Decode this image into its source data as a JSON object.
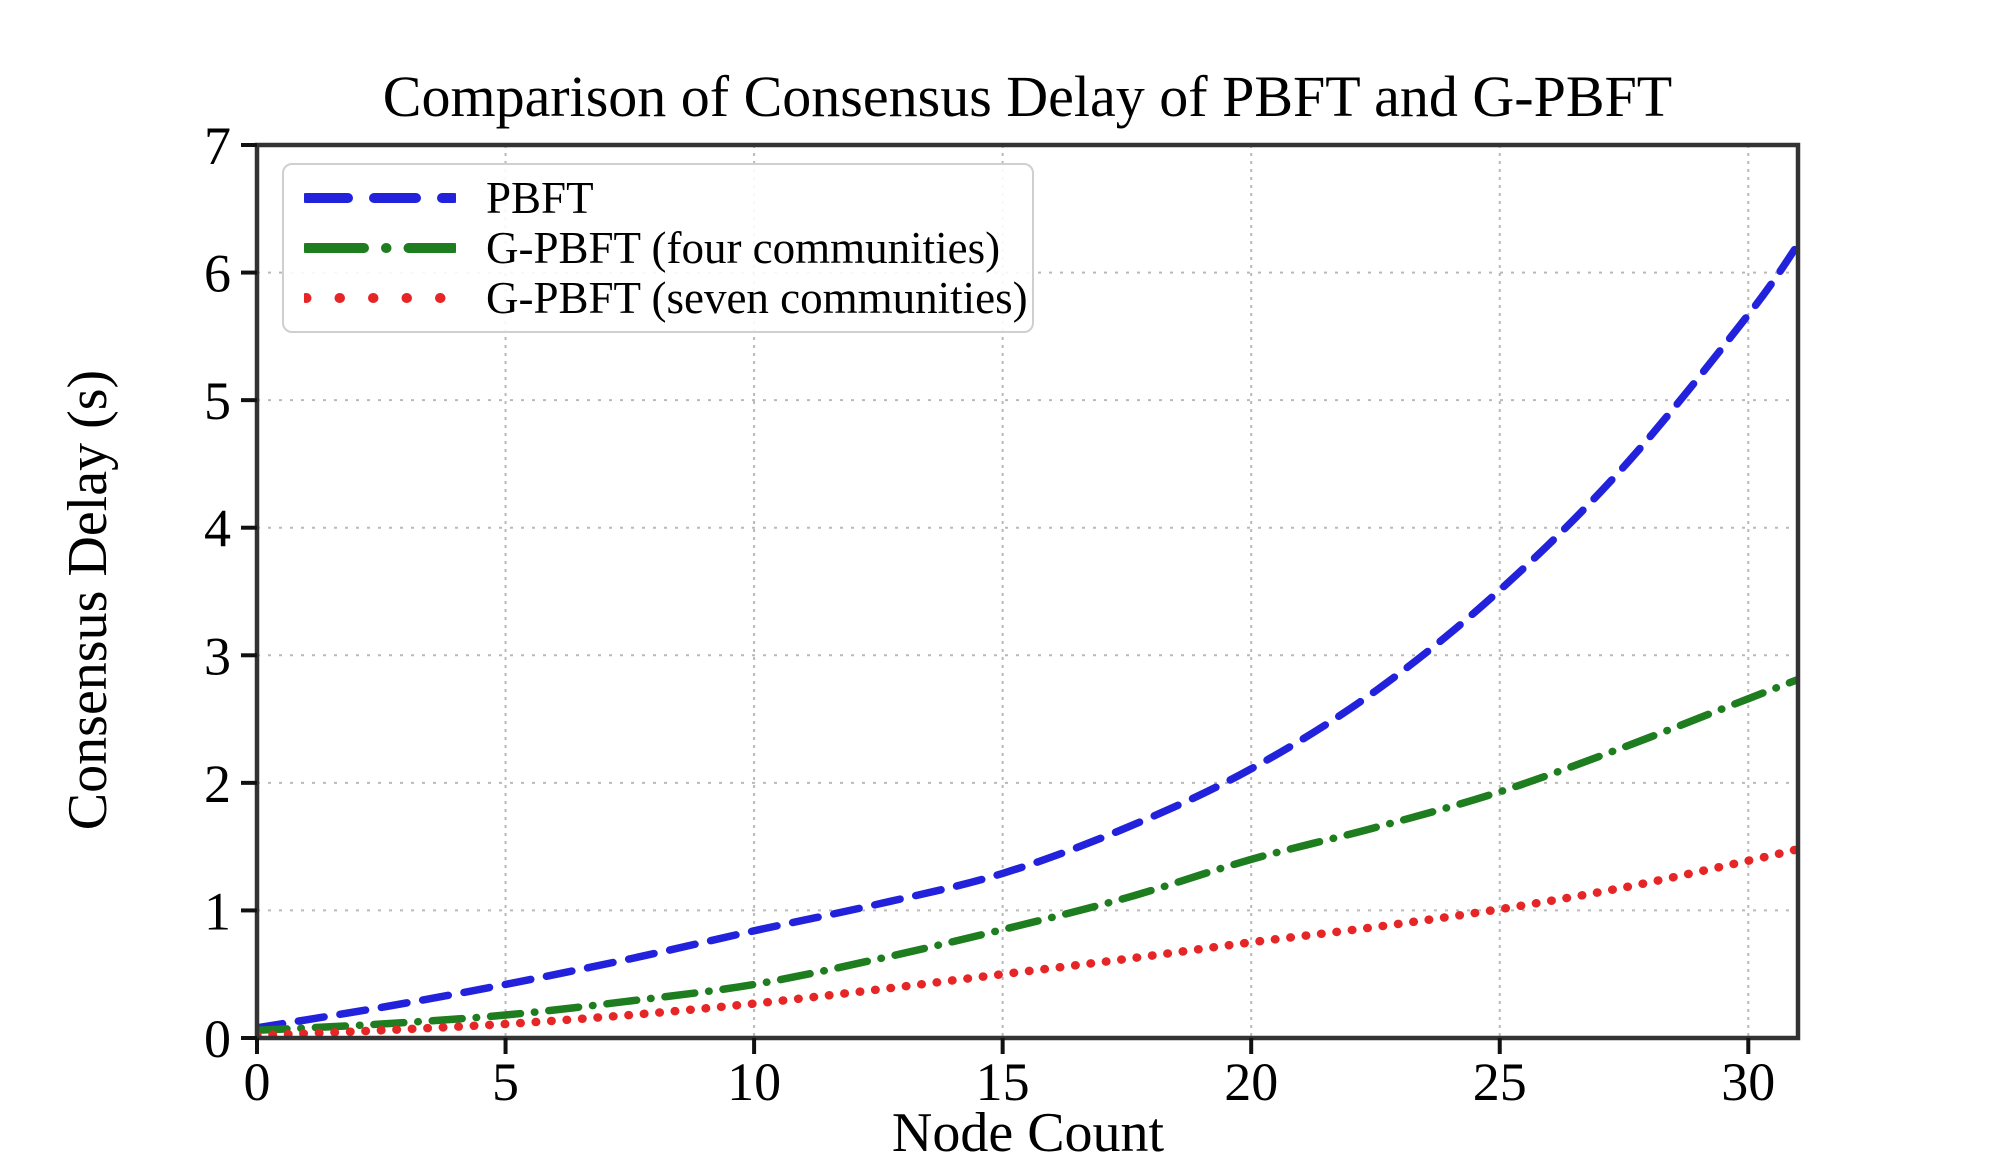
{
  "chart_data": {
    "type": "line",
    "title": "Comparison of Consensus Delay of PBFT and G-PBFT",
    "xlabel": "Node Count",
    "ylabel": "Consensus Delay (s)",
    "xlim": [
      0,
      31
    ],
    "ylim": [
      0,
      7
    ],
    "xticks": [
      0,
      5,
      10,
      15,
      20,
      25,
      30
    ],
    "yticks": [
      0,
      1,
      2,
      3,
      4,
      5,
      6,
      7
    ],
    "grid": true,
    "legend_position": "upper left",
    "x": [
      0,
      2.5,
      5,
      7.5,
      10,
      12.5,
      15,
      17.5,
      20,
      22.5,
      25,
      27.5,
      30,
      31
    ],
    "series": [
      {
        "name": "PBFT",
        "color": "#2222dd",
        "line_style": "dashed",
        "values": [
          0.08,
          0.24,
          0.42,
          0.62,
          0.84,
          1.05,
          1.29,
          1.65,
          2.11,
          2.72,
          3.51,
          4.48,
          5.67,
          6.22
        ]
      },
      {
        "name": "G-PBFT (four communities)",
        "color": "#1e7d1e",
        "line_style": "dashdot",
        "values": [
          0.06,
          0.11,
          0.18,
          0.29,
          0.42,
          0.62,
          0.85,
          1.1,
          1.4,
          1.65,
          1.93,
          2.28,
          2.66,
          2.81
        ]
      },
      {
        "name": "G-PBFT (seven communities)",
        "color": "#e62626",
        "line_style": "dotted",
        "values": [
          0.02,
          0.06,
          0.11,
          0.18,
          0.27,
          0.38,
          0.5,
          0.62,
          0.75,
          0.87,
          1.01,
          1.18,
          1.39,
          1.48
        ]
      }
    ],
    "grid_color": "#b9b9b9",
    "frame_color": "#333333",
    "tick_color": "#111111",
    "text_color": "#000000",
    "background": "#ffffff"
  }
}
